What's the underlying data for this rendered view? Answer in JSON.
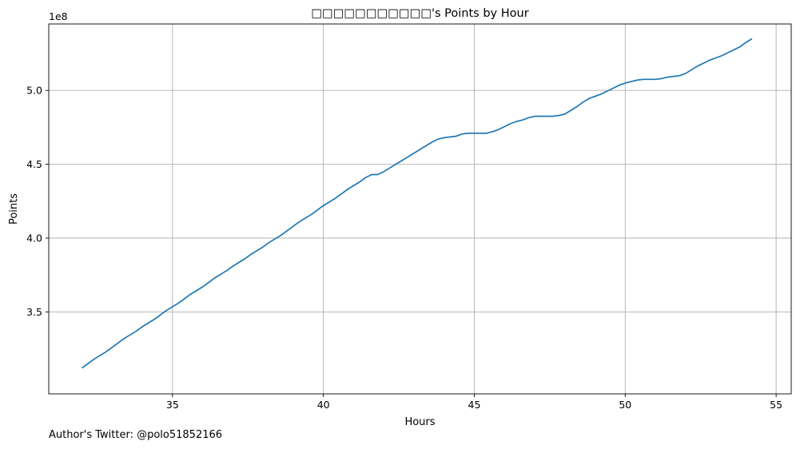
{
  "chart_data": {
    "type": "line",
    "title": "□□□□□□□□□□□'s Points by Hour",
    "xlabel": "Hours",
    "ylabel": "Points",
    "y_offset_label": "1e8",
    "xlim": [
      30.9,
      55.5
    ],
    "ylim": [
      2.945,
      5.45
    ],
    "x_ticks": [
      35,
      40,
      45,
      50,
      55
    ],
    "y_ticks": [
      3.5,
      4.0,
      4.5,
      5.0
    ],
    "x_tick_labels": [
      "35",
      "40",
      "45",
      "50",
      "55"
    ],
    "y_tick_labels": [
      "3.5",
      "4.0",
      "4.5",
      "5.0"
    ],
    "grid": true,
    "line_color": "#1f77b4",
    "series": [
      {
        "x": [
          32.0,
          32.2,
          32.4,
          32.6,
          32.8,
          33.0,
          33.2,
          33.4,
          33.6,
          33.8,
          34.0,
          34.2,
          34.4,
          34.6,
          34.8,
          35.0,
          35.2,
          35.4,
          35.6,
          35.8,
          36.0,
          36.2,
          36.4,
          36.6,
          36.8,
          37.0,
          37.2,
          37.4,
          37.6,
          37.8,
          38.0,
          38.2,
          38.4,
          38.6,
          38.8,
          39.0,
          39.2,
          39.4,
          39.6,
          39.8,
          40.0,
          40.2,
          40.4,
          40.6,
          40.8,
          41.0,
          41.2,
          41.4,
          41.6,
          41.8,
          42.0,
          42.2,
          42.4,
          42.6,
          42.8,
          43.0,
          43.2,
          43.4,
          43.6,
          43.8,
          44.0,
          44.2,
          44.4,
          44.6,
          44.8,
          45.0,
          45.2,
          45.4,
          45.6,
          45.8,
          46.0,
          46.2,
          46.4,
          46.6,
          46.8,
          47.0,
          47.2,
          47.4,
          47.6,
          47.8,
          48.0,
          48.2,
          48.4,
          48.6,
          48.8,
          49.0,
          49.2,
          49.4,
          49.6,
          49.8,
          50.0,
          50.2,
          50.4,
          50.6,
          50.8,
          51.0,
          51.2,
          51.4,
          51.6,
          51.8,
          52.0,
          52.2,
          52.4,
          52.6,
          52.8,
          53.0,
          53.2,
          53.4,
          53.6,
          53.8,
          54.0,
          54.2
        ],
        "y": [
          3.12,
          3.15,
          3.18,
          3.205,
          3.23,
          3.26,
          3.29,
          3.32,
          3.345,
          3.37,
          3.4,
          3.425,
          3.45,
          3.48,
          3.51,
          3.535,
          3.56,
          3.59,
          3.62,
          3.645,
          3.67,
          3.7,
          3.73,
          3.755,
          3.78,
          3.81,
          3.835,
          3.86,
          3.89,
          3.915,
          3.94,
          3.97,
          3.995,
          4.02,
          4.05,
          4.08,
          4.11,
          4.135,
          4.16,
          4.19,
          4.22,
          4.245,
          4.27,
          4.3,
          4.33,
          4.355,
          4.38,
          4.41,
          4.43,
          4.43,
          4.45,
          4.475,
          4.5,
          4.525,
          4.55,
          4.575,
          4.6,
          4.625,
          4.65,
          4.67,
          4.68,
          4.685,
          4.69,
          4.705,
          4.71,
          4.71,
          4.71,
          4.71,
          4.72,
          4.735,
          4.755,
          4.775,
          4.79,
          4.8,
          4.815,
          4.825,
          4.825,
          4.825,
          4.825,
          4.83,
          4.84,
          4.865,
          4.89,
          4.92,
          4.945,
          4.96,
          4.975,
          4.995,
          5.015,
          5.035,
          5.05,
          5.06,
          5.07,
          5.075,
          5.075,
          5.075,
          5.08,
          5.09,
          5.095,
          5.1,
          5.115,
          5.14,
          5.165,
          5.185,
          5.205,
          5.22,
          5.235,
          5.255,
          5.275,
          5.295,
          5.325,
          5.35
        ]
      }
    ]
  },
  "footer": {
    "text": "Author's Twitter: @polo51852166"
  }
}
